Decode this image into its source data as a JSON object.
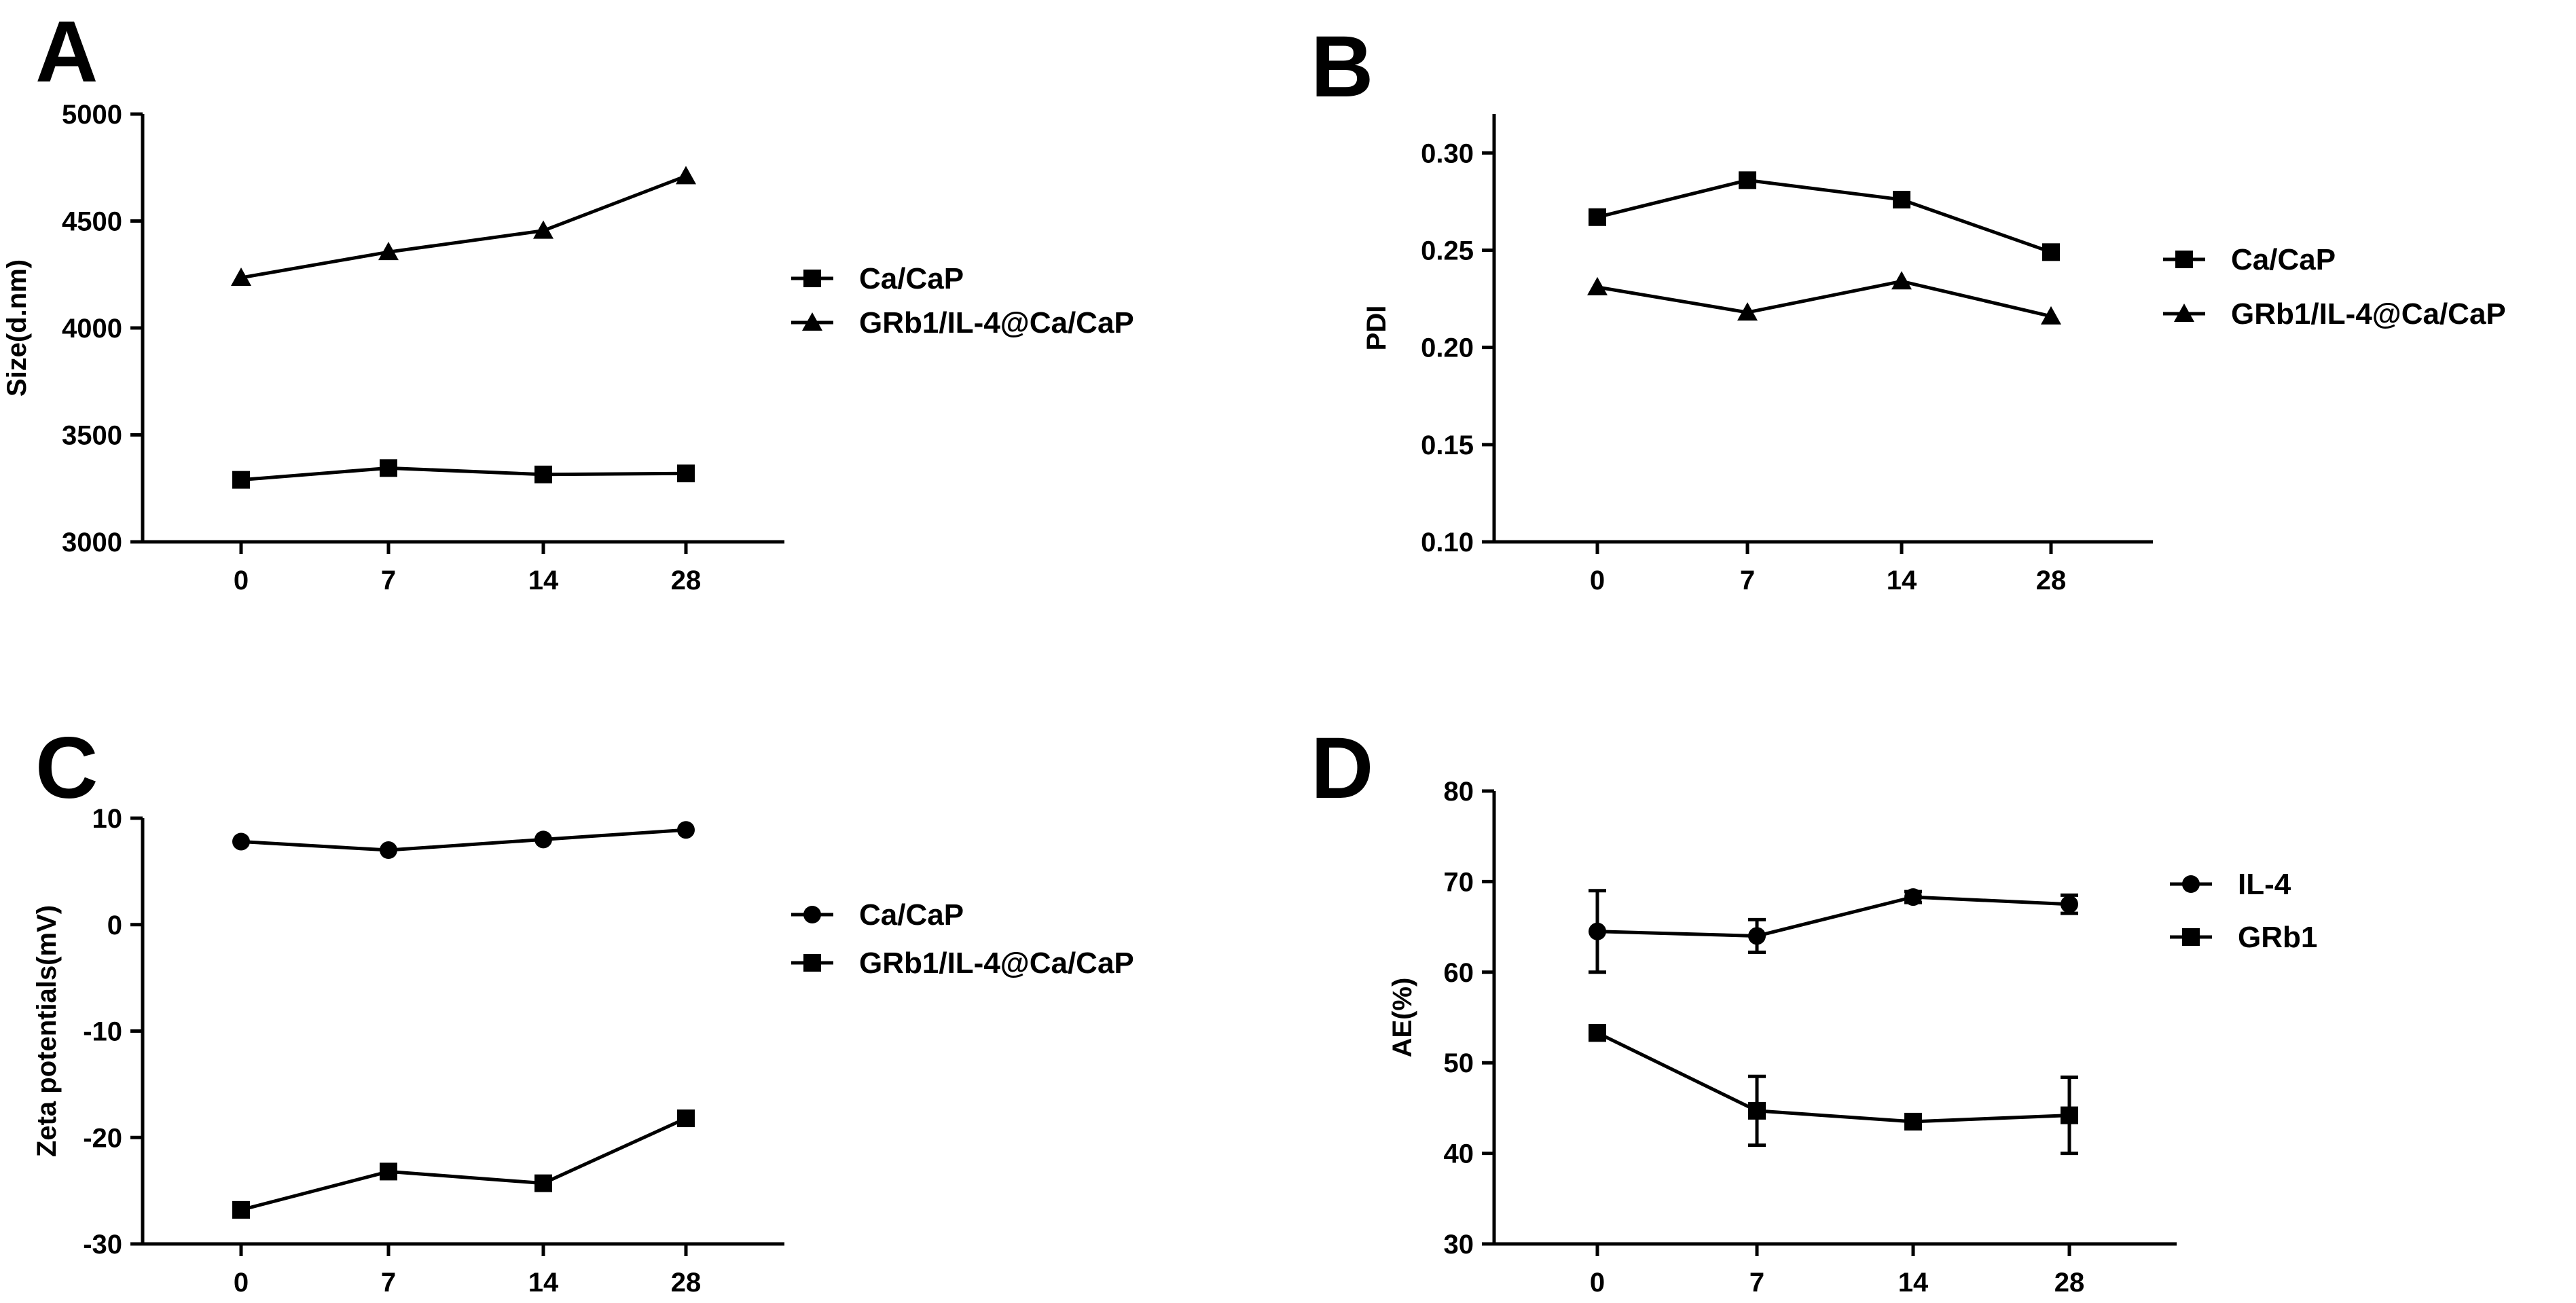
{
  "chart_data": [
    {
      "panel": "A",
      "type": "line",
      "title": "",
      "xlabel": "",
      "ylabel": "Size(d.nm)",
      "x": [
        0,
        7,
        14,
        28
      ],
      "x_tick_labels": [
        "0",
        "7",
        "14",
        "28"
      ],
      "ylim": [
        3000,
        5000
      ],
      "y_ticks": [
        3000,
        3500,
        4000,
        4500,
        5000
      ],
      "y_tick_labels": [
        "3000",
        "3500",
        "4000",
        "4500",
        "5000"
      ],
      "grid": false,
      "legend_position": "right",
      "series": [
        {
          "name": "Ca/CaP",
          "marker": "square",
          "values": [
            3290,
            3345,
            3315,
            3320
          ]
        },
        {
          "name": "GRb1/IL-4@Ca/CaP",
          "marker": "triangle",
          "values": [
            4235,
            4355,
            4455,
            4710
          ]
        }
      ]
    },
    {
      "panel": "B",
      "type": "line",
      "title": "",
      "xlabel": "",
      "ylabel": "PDI",
      "x": [
        0,
        7,
        14,
        28
      ],
      "x_tick_labels": [
        "0",
        "7",
        "14",
        "28"
      ],
      "ylim": [
        0.1,
        0.32
      ],
      "y_ticks": [
        0.1,
        0.15,
        0.2,
        0.25,
        0.3
      ],
      "y_tick_labels": [
        "0.10",
        "0.15",
        "0.20",
        "0.25",
        "0.30"
      ],
      "grid": false,
      "legend_position": "right",
      "series": [
        {
          "name": "Ca/CaP",
          "marker": "square",
          "values": [
            0.267,
            0.286,
            0.276,
            0.249
          ]
        },
        {
          "name": "GRb1/IL-4@Ca/CaP",
          "marker": "triangle",
          "values": [
            0.231,
            0.218,
            0.234,
            0.216
          ]
        }
      ]
    },
    {
      "panel": "C",
      "type": "line",
      "title": "",
      "xlabel": "",
      "ylabel": "Zeta potentials(mV)",
      "x": [
        0,
        7,
        14,
        28
      ],
      "x_tick_labels": [
        "0",
        "7",
        "14",
        "28"
      ],
      "ylim": [
        -30,
        10
      ],
      "y_ticks": [
        -30,
        -20,
        -10,
        0,
        10
      ],
      "y_tick_labels": [
        "-30",
        "-20",
        "-10",
        "0",
        "10"
      ],
      "grid": false,
      "legend_position": "right",
      "series": [
        {
          "name": "Ca/CaP",
          "marker": "circle",
          "values": [
            7.8,
            7.0,
            8.0,
            8.9
          ]
        },
        {
          "name": "GRb1/IL-4@Ca/CaP",
          "marker": "square",
          "values": [
            -26.8,
            -23.2,
            -24.3,
            -18.2
          ]
        }
      ]
    },
    {
      "panel": "D",
      "type": "line",
      "title": "",
      "xlabel": "",
      "ylabel": "AE(%)",
      "x": [
        0,
        7,
        14,
        28
      ],
      "x_tick_labels": [
        "0",
        "7",
        "14",
        "28"
      ],
      "ylim": [
        30,
        80
      ],
      "y_ticks": [
        30,
        40,
        50,
        60,
        70,
        80
      ],
      "y_tick_labels": [
        "30",
        "40",
        "50",
        "60",
        "70",
        "80"
      ],
      "grid": false,
      "legend_position": "right",
      "series": [
        {
          "name": "IL-4",
          "marker": "circle",
          "values": [
            64.5,
            64.0,
            68.3,
            67.5
          ],
          "errors": [
            4.5,
            1.8,
            0.6,
            1.0
          ]
        },
        {
          "name": "GRb1",
          "marker": "square",
          "values": [
            53.3,
            44.7,
            43.5,
            44.2
          ],
          "errors": [
            0.8,
            3.8,
            0.5,
            4.2
          ]
        }
      ]
    }
  ]
}
